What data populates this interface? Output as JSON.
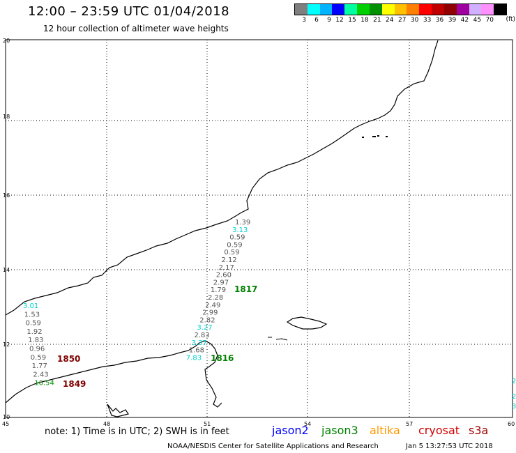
{
  "header": {
    "title": "12:00 – 23:59 UTC 01/04/2018",
    "subtitle": "12 hour collection of altimeter wave heights"
  },
  "legend": {
    "colors": [
      "#7f7f7f",
      "#00ffff",
      "#00b4ff",
      "#0000ff",
      "#00ffa0",
      "#00d000",
      "#009000",
      "#ffff00",
      "#ffc000",
      "#ff8000",
      "#ff0000",
      "#c00000",
      "#900000",
      "#a000a0",
      "#d0b0ff",
      "#ff90ff",
      "#000000"
    ],
    "labels": [
      "3",
      "6",
      "9",
      "12",
      "15",
      "18",
      "21",
      "24",
      "27",
      "30",
      "33",
      "36",
      "39",
      "42",
      "45",
      "70"
    ],
    "unit": "(ft)"
  },
  "map": {
    "lon_ticks": [
      "45",
      "48",
      "51",
      "54",
      "57",
      "60"
    ],
    "lat_ticks": [
      "20",
      "18",
      "16",
      "14",
      "12",
      "10"
    ],
    "pass_times": [
      "1817",
      "1816",
      "1850",
      "1849"
    ],
    "pass_time_colors": [
      "#008000",
      "#008000",
      "#800000",
      "#800000"
    ],
    "west_track_values": [
      "3.01",
      "1.53",
      "0.59",
      "1.92",
      "1.83",
      "0.96",
      "0.59",
      "1.77",
      "2.43",
      "16.54"
    ],
    "west_track_colors": [
      "#00d0d0",
      "#555",
      "#555",
      "#555",
      "#555",
      "#555",
      "#555",
      "#555",
      "#555",
      "#009000"
    ],
    "east_track_values": [
      "1.39",
      "3.13",
      "0.59",
      "0.59",
      "0.59",
      "2.12",
      "2.17",
      "2.60",
      "2.97",
      "1.79",
      "2.28",
      "2.49",
      "2.99",
      "2.82",
      "3.27",
      "2.83",
      "3.37",
      "1.68",
      "7.83"
    ],
    "east_track_colors": [
      "#555",
      "#00d0d0",
      "#555",
      "#555",
      "#555",
      "#555",
      "#555",
      "#555",
      "#555",
      "#555",
      "#555",
      "#555",
      "#555",
      "#555",
      "#00d0d0",
      "#555",
      "#00d0d0",
      "#555",
      "#00d0d0"
    ]
  },
  "footer": {
    "note": "note: 1) Time is in UTC; 2) SWH is in feet",
    "satellites": [
      {
        "name": "jason2",
        "color": "#0000ff"
      },
      {
        "name": "jason3",
        "color": "#008000"
      },
      {
        "name": "altika",
        "color": "#ff9900"
      },
      {
        "name": "cryosat",
        "color": "#d00000"
      },
      {
        "name": "s3a",
        "color": "#a00000"
      }
    ],
    "credit": "NOAA/NESDIS Center for Satellite Applications and Research",
    "timestamp": "Jan  5 13:27:53 UTC 2018"
  }
}
